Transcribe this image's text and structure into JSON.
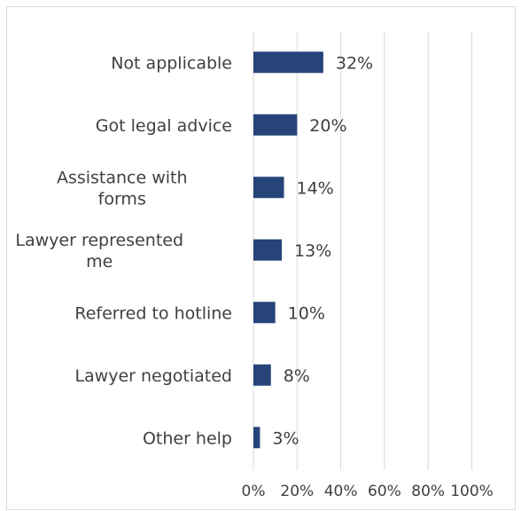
{
  "chart_data": {
    "type": "bar",
    "orientation": "horizontal",
    "categories": [
      [
        "Not applicable"
      ],
      [
        "Got legal advice"
      ],
      [
        "Assistance with",
        "forms"
      ],
      [
        "Lawyer represented",
        "me"
      ],
      [
        "Referred to hotline"
      ],
      [
        "Lawyer negotiated"
      ],
      [
        "Other help"
      ]
    ],
    "values": [
      32,
      20,
      14,
      13,
      10,
      8,
      3
    ],
    "data_labels": [
      "32%",
      "20%",
      "14%",
      "13%",
      "10%",
      "8%",
      "3%"
    ],
    "x_ticks": [
      "0%",
      "20%",
      "40%",
      "60%",
      "80%",
      "100%"
    ],
    "xlim": [
      0,
      100
    ],
    "grid": true,
    "bar_color": "#264478",
    "grid_color": "#d9d9d9"
  }
}
